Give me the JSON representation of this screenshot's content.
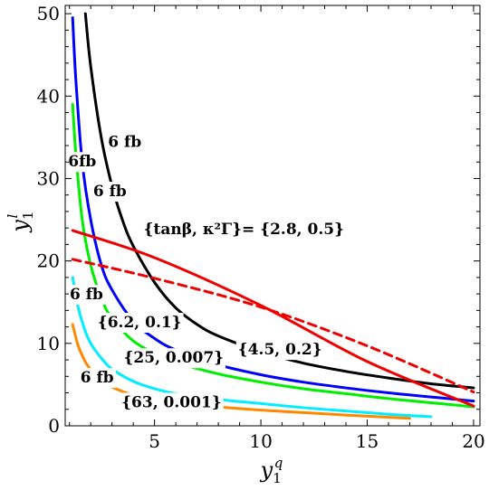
{
  "chart_data": {
    "type": "line",
    "title": "",
    "xlabel": {
      "base": "y",
      "sub": "1",
      "sup": "q"
    },
    "ylabel": {
      "base": "y",
      "sub": "1",
      "sup": "l"
    },
    "xlim": [
      0.8,
      20.3
    ],
    "ylim": [
      0,
      51
    ],
    "xticks": [
      5,
      10,
      15,
      20
    ],
    "yticks": [
      0,
      10,
      20,
      30,
      40,
      50
    ],
    "grid": false,
    "legend": "none",
    "series": [
      {
        "color": "#000000",
        "dash": false,
        "x": [
          1.75,
          2,
          2.5,
          3,
          3.5,
          4,
          5,
          6,
          7,
          8,
          10,
          12,
          14,
          16,
          18,
          20
        ],
        "y": [
          50,
          43.6,
          34.9,
          29.1,
          24.9,
          21.8,
          17.4,
          14.3,
          12.3,
          10.9,
          9.0,
          7.6,
          6.6,
          5.8,
          5.1,
          4.6
        ]
      },
      {
        "color": "#0000ff",
        "dash": false,
        "x": [
          1.15,
          1.3,
          1.6,
          2,
          2.5,
          3,
          4,
          5,
          6,
          8,
          10,
          12,
          14,
          16,
          18,
          20
        ],
        "y": [
          49.5,
          42,
          32,
          25,
          19.5,
          16.5,
          12.7,
          10.6,
          9.2,
          7.4,
          6.2,
          5.3,
          4.6,
          4.0,
          3.5,
          3.0
        ]
      },
      {
        "color": "#00ee00",
        "dash": false,
        "x": [
          1.15,
          1.3,
          1.6,
          2,
          2.5,
          3,
          4,
          5,
          6,
          8,
          10,
          12,
          14,
          16,
          18,
          20
        ],
        "y": [
          39,
          33,
          25,
          19.5,
          15.5,
          13,
          10.3,
          8.8,
          7.7,
          6.3,
          5.3,
          4.5,
          3.9,
          3.3,
          2.8,
          2.3
        ]
      },
      {
        "color": "#00eeff",
        "dash": false,
        "x": [
          1.15,
          1.4,
          1.7,
          2,
          2.5,
          3,
          4,
          5,
          6,
          8,
          10,
          12,
          14,
          16,
          18
        ],
        "y": [
          18,
          14.5,
          11.8,
          10,
          8.2,
          6.9,
          5.4,
          4.5,
          3.9,
          3.2,
          2.7,
          2.2,
          1.8,
          1.4,
          1.1
        ]
      },
      {
        "color": "#ff8800",
        "dash": false,
        "x": [
          1.15,
          1.4,
          1.7,
          2,
          2.5,
          3,
          4,
          5,
          6,
          8,
          10,
          12,
          14,
          17
        ],
        "y": [
          12.3,
          9.8,
          8.0,
          6.8,
          5.5,
          4.7,
          3.7,
          3.1,
          2.8,
          2.3,
          1.9,
          1.6,
          1.3,
          0.9
        ]
      },
      {
        "color": "#ee0000",
        "dash": false,
        "x": [
          1.15,
          5,
          10,
          15,
          20
        ],
        "y": [
          23.7,
          20.4,
          14.6,
          7.8,
          2.4
        ]
      },
      {
        "color": "#ee0000",
        "dash": true,
        "x": [
          1.15,
          5,
          10,
          15,
          20
        ],
        "y": [
          20.2,
          17.9,
          14.4,
          9.7,
          4.1
        ]
      }
    ],
    "annotations": [
      {
        "text": "6 fb",
        "x": 3.6,
        "y": 34.4
      },
      {
        "text": "6fb",
        "x": 1.6,
        "y": 32.0
      },
      {
        "text": "6 fb",
        "x": 2.9,
        "y": 28.4
      },
      {
        "text": "6 fb",
        "x": 1.8,
        "y": 15.9
      },
      {
        "text": "6 fb",
        "x": 2.3,
        "y": 5.8
      },
      {
        "text": "{6.2, 0.1}",
        "x": 4.3,
        "y": 12.5
      },
      {
        "text": "{4.5, 0.2}",
        "x": 10.9,
        "y": 9.2
      },
      {
        "text": "{25, 0.007}",
        "x": 5.9,
        "y": 8.2
      },
      {
        "text": "{63, 0.001}",
        "x": 5.8,
        "y": 2.8
      },
      {
        "text": "{tanβ, κ²Γ}= {2.8, 0.5}",
        "x": 9.2,
        "y": 23.8
      }
    ]
  }
}
